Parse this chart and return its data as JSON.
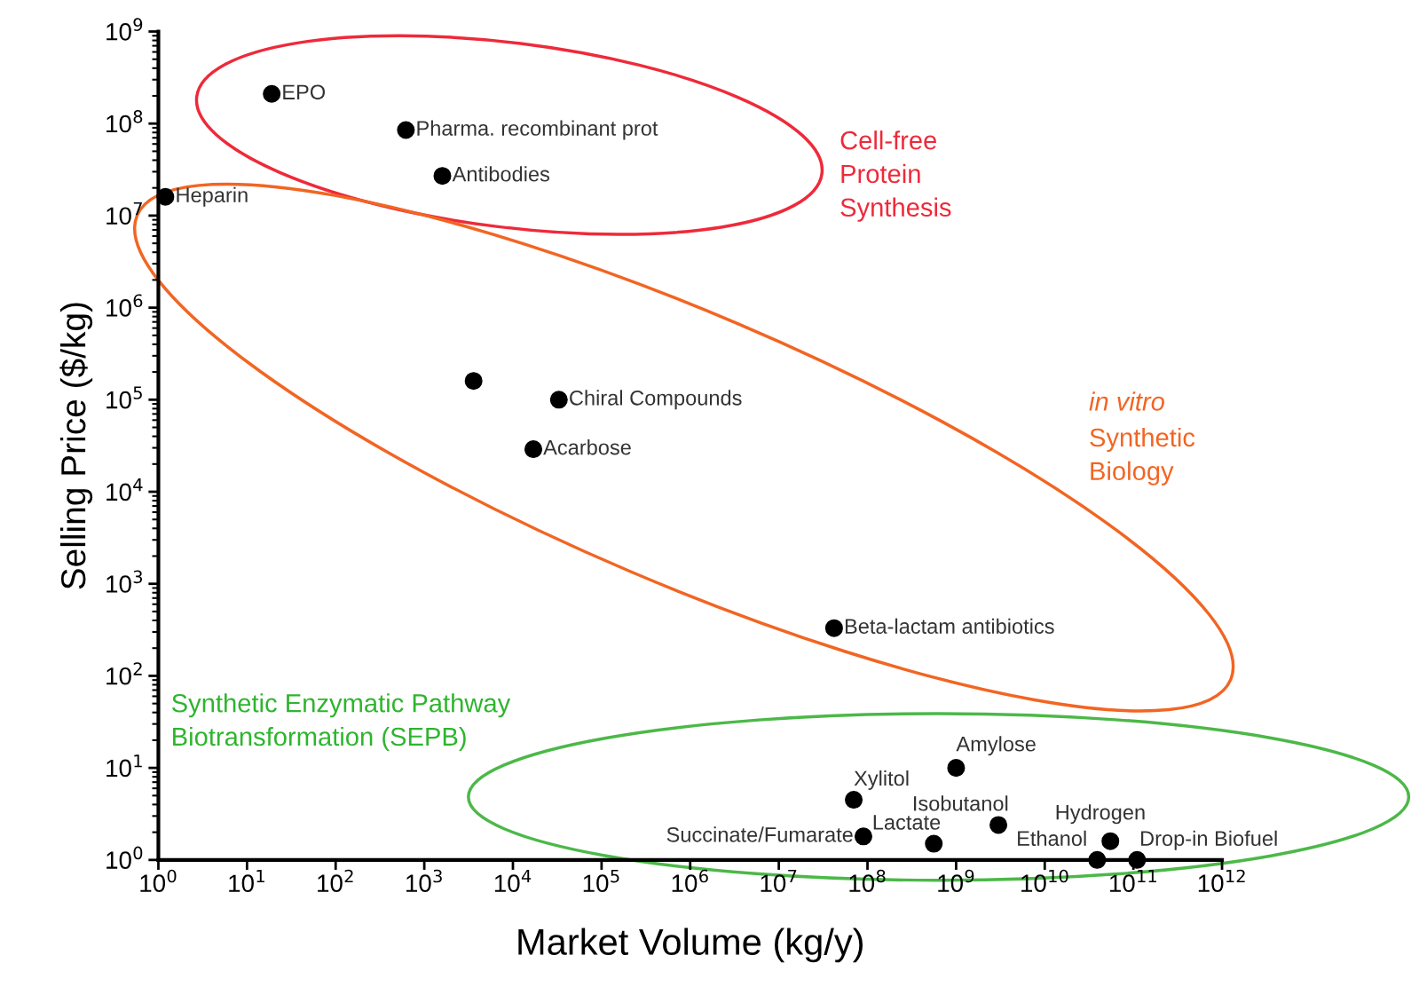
{
  "chart_data": {
    "type": "scatter",
    "xlabel": "Market Volume (kg/y)",
    "ylabel": "Selling Price ($/kg)",
    "log": "xy",
    "grid": false,
    "legend": false,
    "marker": "circle",
    "xlim": [
      1,
      1000000000000.0
    ],
    "ylim": [
      1,
      1000000000.0
    ],
    "xticks": [
      {
        "value": 1,
        "label": "10$^{0}$"
      },
      {
        "value": 10,
        "label": "10$^{1}$"
      },
      {
        "value": 100,
        "label": "10$^{2}$"
      },
      {
        "value": 1000,
        "label": "10$^{3}$"
      },
      {
        "value": 10000,
        "label": "10$^{4}$"
      },
      {
        "value": 100000,
        "label": "10$^{5}$"
      },
      {
        "value": 1000000,
        "label": "10$^{6}$"
      },
      {
        "value": 10000000,
        "label": "10$^{7}$"
      },
      {
        "value": 100000000,
        "label": "10$^{8}$"
      },
      {
        "value": 1000000000,
        "label": "10$^{9}$"
      },
      {
        "value": 10000000000,
        "label": "10$^{10}$"
      },
      {
        "value": 100000000000,
        "label": "10$^{11}$"
      },
      {
        "value": 1000000000000,
        "label": "10$^{12}$"
      }
    ],
    "yticks": [
      {
        "value": 1,
        "label": "10$^{0}$"
      },
      {
        "value": 10,
        "label": "10$^{1}$"
      },
      {
        "value": 100,
        "label": "10$^{2}$"
      },
      {
        "value": 1000,
        "label": "10$^{3}$"
      },
      {
        "value": 10000,
        "label": "10$^{4}$"
      },
      {
        "value": 100000,
        "label": "10$^{5}$"
      },
      {
        "value": 1000000,
        "label": "10$^{6}$"
      },
      {
        "value": 10000000,
        "label": "10$^{7}$"
      },
      {
        "value": 100000000,
        "label": "10$^{8}$"
      },
      {
        "value": 1000000000,
        "label": "10$^{9}$"
      }
    ],
    "annotations": [
      "Cell-free\nProtein\nSynthesis",
      "in vitro",
      "Synthetic\nBiology",
      "Synthetic Enzymatic Pathway\nBiotransformation (SEPB)"
    ],
    "series": [
      {
        "name": "EPO",
        "color": "#000000",
        "x": [
          19
        ],
        "values": [
          210000000.0
        ]
      },
      {
        "name": "Pharma. recombinant prot",
        "color": "#000000",
        "x": [
          620
        ],
        "values": [
          85000000.0
        ]
      },
      {
        "name": "Antibodies",
        "color": "#000000",
        "x": [
          1600
        ],
        "values": [
          27000000.0
        ]
      },
      {
        "name": "Heparin",
        "color": "#000000",
        "x": [
          1.2
        ],
        "values": [
          16000000.0
        ]
      },
      {
        "color": "#000000",
        "x": [
          3600
        ],
        "values": [
          160000.0
        ]
      },
      {
        "name": "Chiral Compounds",
        "color": "#000000",
        "x": [
          33000
        ],
        "values": [
          100000.0
        ]
      },
      {
        "name": "Acarbose",
        "color": "#000000",
        "x": [
          17000
        ],
        "values": [
          29000.0
        ]
      },
      {
        "name": "Beta-lactam antibiotics",
        "color": "#000000",
        "x": [
          42000000.0
        ],
        "values": [
          330
        ]
      },
      {
        "name": "Amylose",
        "color": "#000000",
        "x": [
          1000000000.0
        ],
        "values": [
          10
        ]
      },
      {
        "name": "Xylitol",
        "color": "#000000",
        "x": [
          70000000.0
        ],
        "values": [
          4.5
        ]
      },
      {
        "name": "Isobutanol",
        "color": "#000000",
        "x": [
          3000000000.0
        ],
        "values": [
          2.4
        ]
      },
      {
        "name": "Succinate/Fumarate",
        "color": "#000000",
        "x": [
          90000000.0
        ],
        "values": [
          1.8
        ]
      },
      {
        "name": "Lactate",
        "color": "#000000",
        "x": [
          560000000.0
        ],
        "values": [
          1.5
        ]
      },
      {
        "name": "Hydrogen",
        "color": "#000000",
        "x": [
          55000000000.0
        ],
        "values": [
          1.6
        ]
      },
      {
        "name": "Ethanol",
        "color": "#000000",
        "x": [
          39000000000.0
        ],
        "values": [
          1
        ]
      },
      {
        "name": "Drop-in Biofuel",
        "color": "#000000",
        "x": [
          110000000000.0
        ],
        "values": [
          1
        ]
      }
    ]
  }
}
